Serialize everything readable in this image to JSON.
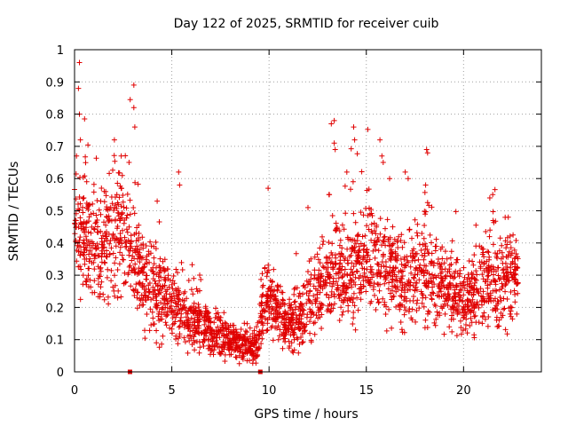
{
  "chart_data": {
    "type": "scatter",
    "title": "Day 122 of 2025, SRMTID for receiver cuib",
    "xlabel": "GPS time / hours",
    "ylabel": "SRMTID / TECUs",
    "xlim": [
      0,
      24
    ],
    "ylim": [
      0,
      1
    ],
    "xticks": [
      "0",
      "5",
      "10",
      "15",
      "20"
    ],
    "yticks": [
      "0",
      "0.1",
      "0.2",
      "0.3",
      "0.4",
      "0.5",
      "0.6",
      "0.7",
      "0.8",
      "0.9",
      "1"
    ],
    "grid": true,
    "marker": "plus",
    "color": "#e00000",
    "gap_markers_x": [
      2.85,
      9.55
    ],
    "trend": [
      [
        0.0,
        0.4
      ],
      [
        0.5,
        0.42
      ],
      [
        1.0,
        0.4
      ],
      [
        1.5,
        0.38
      ],
      [
        2.0,
        0.42
      ],
      [
        2.5,
        0.46
      ],
      [
        3.0,
        0.36
      ],
      [
        3.5,
        0.3
      ],
      [
        4.0,
        0.27
      ],
      [
        4.5,
        0.24
      ],
      [
        5.0,
        0.21
      ],
      [
        5.5,
        0.18
      ],
      [
        6.0,
        0.16
      ],
      [
        6.5,
        0.14
      ],
      [
        7.0,
        0.12
      ],
      [
        7.5,
        0.11
      ],
      [
        8.0,
        0.1
      ],
      [
        8.5,
        0.09
      ],
      [
        9.0,
        0.08
      ],
      [
        9.4,
        0.09
      ],
      [
        9.6,
        0.18
      ],
      [
        10.0,
        0.22
      ],
      [
        10.5,
        0.17
      ],
      [
        11.0,
        0.15
      ],
      [
        11.5,
        0.16
      ],
      [
        12.0,
        0.2
      ],
      [
        12.5,
        0.24
      ],
      [
        13.0,
        0.28
      ],
      [
        13.5,
        0.31
      ],
      [
        14.0,
        0.3
      ],
      [
        14.5,
        0.33
      ],
      [
        15.0,
        0.34
      ],
      [
        15.5,
        0.35
      ],
      [
        16.0,
        0.34
      ],
      [
        16.5,
        0.3
      ],
      [
        17.0,
        0.27
      ],
      [
        17.5,
        0.3
      ],
      [
        18.0,
        0.32
      ],
      [
        18.5,
        0.3
      ],
      [
        19.0,
        0.28
      ],
      [
        19.5,
        0.25
      ],
      [
        20.0,
        0.22
      ],
      [
        20.5,
        0.23
      ],
      [
        21.0,
        0.27
      ],
      [
        21.5,
        0.29
      ],
      [
        22.0,
        0.29
      ],
      [
        22.5,
        0.3
      ],
      [
        22.8,
        0.31
      ]
    ],
    "spikes": [
      [
        0.25,
        0.96
      ],
      [
        0.2,
        0.88
      ],
      [
        0.25,
        0.8
      ],
      [
        0.3,
        0.72
      ],
      [
        0.1,
        0.67
      ],
      [
        2.05,
        0.72
      ],
      [
        2.4,
        0.67
      ],
      [
        2.8,
        0.65
      ],
      [
        3.05,
        0.89
      ],
      [
        3.05,
        0.82
      ],
      [
        3.1,
        0.76
      ],
      [
        5.35,
        0.62
      ],
      [
        5.4,
        0.58
      ],
      [
        9.95,
        0.57
      ],
      [
        13.2,
        0.77
      ],
      [
        13.35,
        0.78
      ],
      [
        13.35,
        0.71
      ],
      [
        13.4,
        0.69
      ],
      [
        14.35,
        0.76
      ],
      [
        14.4,
        0.72
      ],
      [
        15.7,
        0.72
      ],
      [
        15.8,
        0.67
      ],
      [
        17.0,
        0.62
      ],
      [
        17.15,
        0.6
      ],
      [
        18.1,
        0.69
      ],
      [
        18.15,
        0.68
      ],
      [
        18.05,
        0.58
      ],
      [
        21.5,
        0.55
      ],
      [
        21.35,
        0.54
      ],
      [
        22.3,
        0.48
      ],
      [
        4.25,
        0.53
      ],
      [
        12.0,
        0.51
      ],
      [
        14.0,
        0.62
      ],
      [
        16.2,
        0.6
      ],
      [
        13.1,
        0.55
      ]
    ],
    "n_points": 2600
  }
}
